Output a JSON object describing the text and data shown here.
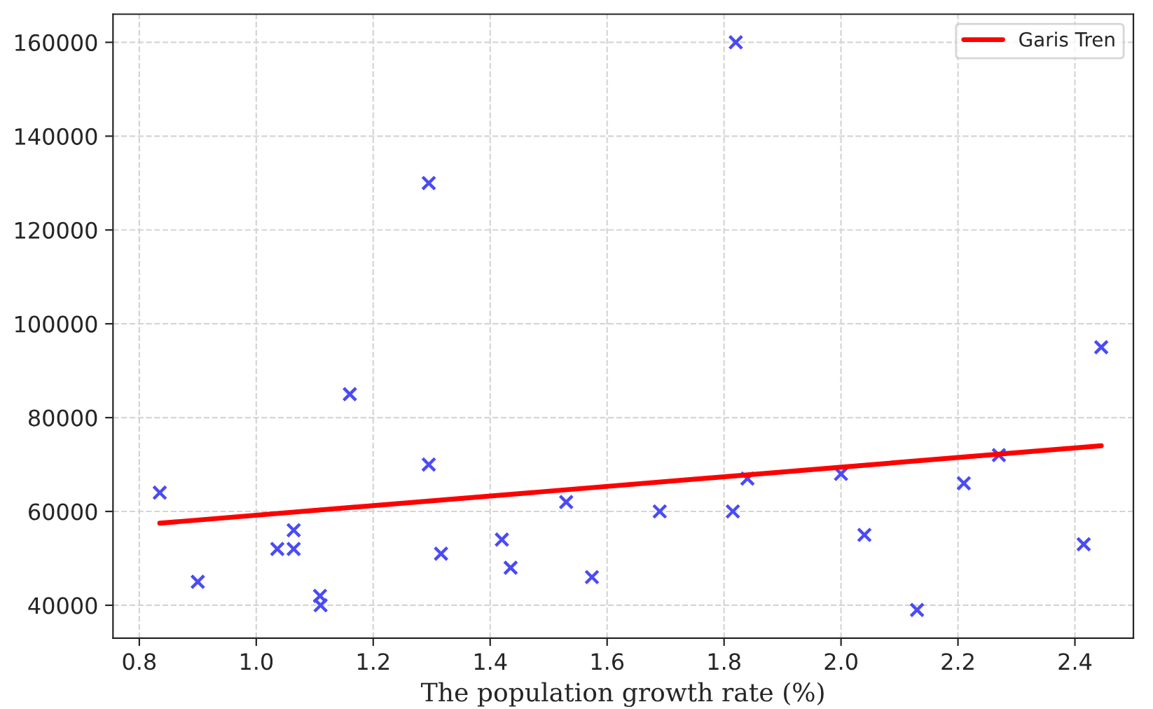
{
  "chart_data": {
    "type": "scatter",
    "xlabel": "The population growth rate (%)",
    "xlim": [
      0.755,
      2.5
    ],
    "xticks": [
      0.8,
      {
        "value": 1.0,
        "label": "1.0"
      },
      1.2,
      1.4,
      1.6,
      1.8,
      {
        "value": 2.0,
        "label": "2.0"
      },
      2.2,
      2.4
    ],
    "ylim": [
      33000,
      166000
    ],
    "yticks": [
      40000,
      60000,
      80000,
      100000,
      120000,
      140000,
      160000
    ],
    "grid": true,
    "legend": "top right",
    "series": [
      {
        "marker": "cross",
        "color": "#4b4bf5",
        "x": [
          0.835,
          0.9,
          1.036,
          1.064,
          1.064,
          1.109,
          1.11,
          1.16,
          1.295,
          1.295,
          1.316,
          1.42,
          1.435,
          1.53,
          1.574,
          1.69,
          1.815,
          1.82,
          1.84,
          2.0,
          2.04,
          2.13,
          2.21,
          2.27,
          2.415,
          2.445
        ],
        "values": [
          64000,
          45000,
          52000,
          56000,
          52000,
          42000,
          40000,
          85000,
          130000,
          70000,
          51000,
          54000,
          48000,
          62000,
          46000,
          60000,
          60000,
          160000,
          67000,
          68000,
          55000,
          39000,
          66000,
          72000,
          53000,
          95000
        ]
      },
      {
        "type": "line",
        "name": "Garis Tren",
        "color": "#ff0000",
        "x": [
          0.835,
          2.445
        ],
        "values": [
          57500,
          74000
        ]
      }
    ]
  }
}
